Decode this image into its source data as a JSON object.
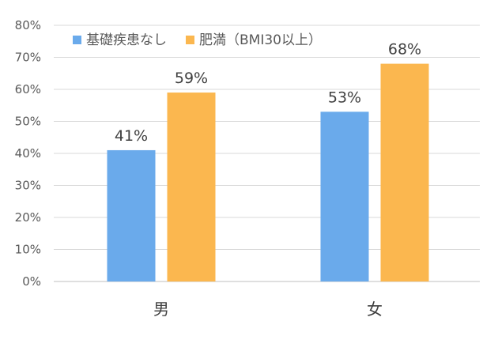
{
  "chart_data": {
    "type": "bar",
    "categories": [
      "男",
      "女"
    ],
    "series": [
      {
        "name": "基礎疾患なし",
        "values": [
          41,
          53
        ],
        "color": "#6aaaeb"
      },
      {
        "name": "肥満（BMI30以上）",
        "values": [
          59,
          68
        ],
        "color": "#fbb74f"
      }
    ],
    "value_labels": [
      [
        "41%",
        "53%"
      ],
      [
        "59%",
        "68%"
      ]
    ],
    "ylim": [
      0,
      80
    ],
    "y_ticks": [
      "0%",
      "10%",
      "20%",
      "30%",
      "40%",
      "50%",
      "60%",
      "70%",
      "80%"
    ],
    "grid": true,
    "legend_position": "top-left",
    "title": "",
    "xlabel": "",
    "ylabel": ""
  }
}
